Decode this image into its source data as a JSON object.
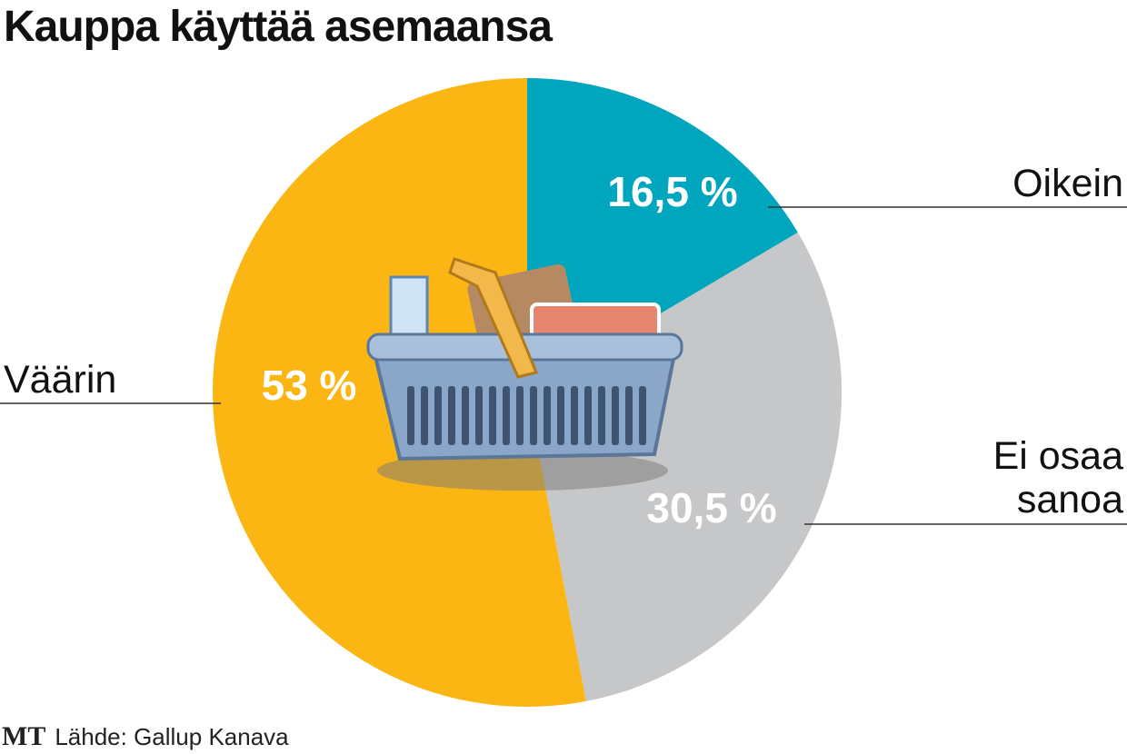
{
  "chart_data": {
    "type": "pie",
    "title": "Kauppa käyttää asemaansa",
    "categories": [
      "Oikein",
      "Ei osaa sanoa",
      "Väärin"
    ],
    "values": [
      16.5,
      30.5,
      53
    ],
    "value_labels": [
      "16,5 %",
      "30,5 %",
      "53 %"
    ],
    "colors": [
      "#00a6be",
      "#c6c7c9",
      "#fbb614"
    ],
    "logo": "MT",
    "source": "Lähde: Gallup Kanava"
  }
}
